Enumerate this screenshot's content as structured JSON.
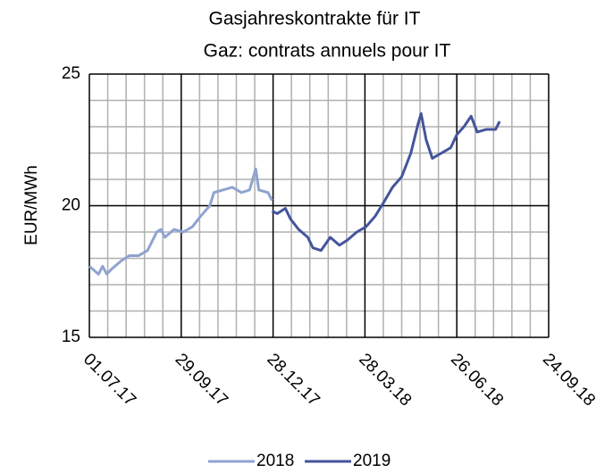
{
  "chart_data": {
    "type": "line",
    "title": [
      "Gasjahreskontrakte für IT",
      "Gaz: contrats annuels pour IT"
    ],
    "y_label": "EUR/MWh",
    "xlim": [
      "01.07.17",
      "24.09.18"
    ],
    "xticks": [
      "01.07.17",
      "29.09.17",
      "28.12.17",
      "28.03.18",
      "26.06.18",
      "24.09.18"
    ],
    "ylim": [
      15,
      25
    ],
    "yticks": [
      15,
      20,
      25
    ],
    "grid": true,
    "minor_grid": true,
    "legend": "bottom",
    "series": [
      {
        "name": "2018",
        "color": "#8fa3d0",
        "x": [
          "01.07.17",
          "10.07.17",
          "14.07.17",
          "18.07.17",
          "23.07.17",
          "01.08.17",
          "09.08.17",
          "18.08.17",
          "27.08.17",
          "05.09.17",
          "09.09.17",
          "13.09.17",
          "22.09.17",
          "01.10.17",
          "10.10.17",
          "18.10.17",
          "27.10.17",
          "31.10.17",
          "09.11.17",
          "18.11.17",
          "27.11.17",
          "05.12.17",
          "11.12.17",
          "14.12.17",
          "23.12.17",
          "27.12.17"
        ],
        "values": [
          17.7,
          17.4,
          17.7,
          17.4,
          17.6,
          17.9,
          18.1,
          18.1,
          18.3,
          19.0,
          19.1,
          18.8,
          19.1,
          19.0,
          19.2,
          19.6,
          20.0,
          20.5,
          20.6,
          20.7,
          20.5,
          20.6,
          21.4,
          20.6,
          20.5,
          20.2
        ]
      },
      {
        "name": "2019",
        "color": "#44549c",
        "x": [
          "27.12.17",
          "01.01.18",
          "09.01.18",
          "14.01.18",
          "22.01.18",
          "31.01.18",
          "05.02.18",
          "13.02.18",
          "22.02.18",
          "03.03.18",
          "11.03.18",
          "20.03.18",
          "29.03.18",
          "07.04.18",
          "15.04.18",
          "24.04.18",
          "03.05.18",
          "12.05.18",
          "19.05.18",
          "22.05.18",
          "27.05.18",
          "02.06.18",
          "11.06.18",
          "20.06.18",
          "26.06.18",
          "03.07.18",
          "10.07.18",
          "16.07.18",
          "25.07.18",
          "03.08.18",
          "07.08.18"
        ],
        "values": [
          19.8,
          19.7,
          19.9,
          19.5,
          19.1,
          18.8,
          18.4,
          18.3,
          18.8,
          18.5,
          18.7,
          19.0,
          19.2,
          19.6,
          20.1,
          20.7,
          21.1,
          22.0,
          23.1,
          23.5,
          22.5,
          21.8,
          22.0,
          22.2,
          22.7,
          23.0,
          23.4,
          22.8,
          22.9,
          22.9,
          23.2
        ]
      }
    ]
  }
}
